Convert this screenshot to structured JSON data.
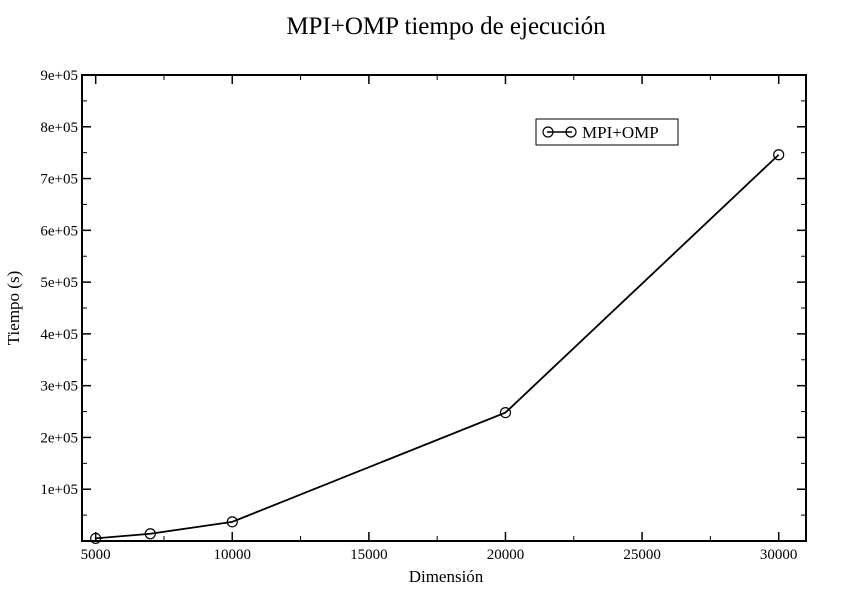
{
  "chart_data": {
    "type": "line",
    "title": "MPI+OMP tiempo de ejecución",
    "xlabel": "Dimensión",
    "ylabel": "Tiempo (s)",
    "xlim": [
      4500,
      31000
    ],
    "ylim": [
      0,
      900000
    ],
    "x_ticks": [
      5000,
      10000,
      15000,
      20000,
      25000,
      30000
    ],
    "x_tick_labels": [
      "5000",
      "10000",
      "15000",
      "20000",
      "25000",
      "30000"
    ],
    "y_ticks": [
      100000,
      200000,
      300000,
      400000,
      500000,
      600000,
      700000,
      800000,
      900000
    ],
    "y_tick_labels": [
      "1e+05",
      "2e+05",
      "3e+05",
      "4e+05",
      "5e+05",
      "6e+05",
      "7e+05",
      "8e+05",
      "9e+05"
    ],
    "grid": false,
    "legend": {
      "position": "top-right"
    },
    "series": [
      {
        "name": "MPI+OMP",
        "marker": "circle",
        "color": "#000000",
        "x": [
          5000,
          7000,
          10000,
          20000,
          30000
        ],
        "y": [
          5000,
          14000,
          37000,
          248000,
          746000
        ]
      }
    ]
  }
}
